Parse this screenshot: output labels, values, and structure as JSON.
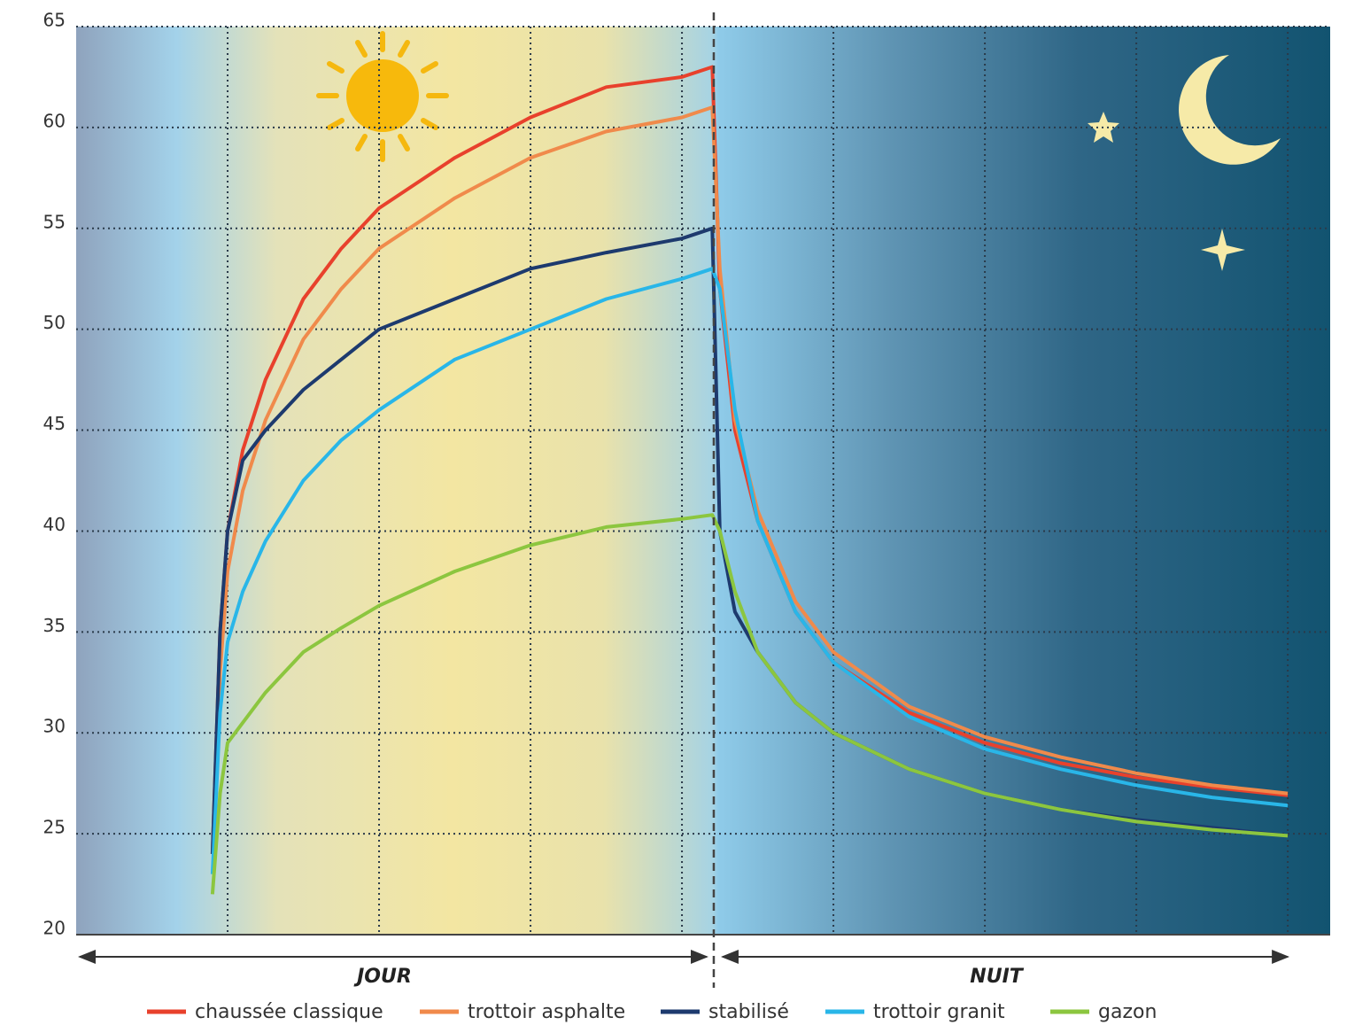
{
  "chart_data": {
    "type": "line",
    "x": [
      -0.1,
      -0.05,
      0,
      0.1,
      0.25,
      0.5,
      0.75,
      1,
      1.5,
      2,
      2.5,
      3,
      3.2,
      3.25,
      3.35,
      3.5,
      3.75,
      4,
      4.5,
      5,
      5.5,
      6,
      6.5,
      7
    ],
    "xlim": [
      -1,
      7.28
    ],
    "xticks": [
      0,
      1,
      2,
      3,
      4,
      5,
      6,
      7
    ],
    "ylim": [
      20,
      65
    ],
    "yticks": [
      20,
      25,
      30,
      35,
      40,
      45,
      50,
      55,
      60,
      65
    ],
    "grid": true,
    "divider_x": 3.21,
    "periods": [
      "JOUR",
      "NUIT"
    ],
    "series": [
      {
        "name": "chaussée classique",
        "color": "#e8412c",
        "values": [
          24,
          35,
          40,
          44,
          47.5,
          51.5,
          54,
          56,
          58.5,
          60.5,
          62,
          62.5,
          63,
          52,
          45,
          40.5,
          36,
          33.5,
          31,
          29.5,
          28.5,
          27.8,
          27.3,
          26.9
        ]
      },
      {
        "name": "trottoir asphalte",
        "color": "#f08a4b",
        "values": [
          24,
          33,
          38,
          42,
          45.5,
          49.5,
          52,
          54,
          56.5,
          58.5,
          59.8,
          60.5,
          61,
          53,
          45.5,
          41,
          36.5,
          34,
          31.3,
          29.8,
          28.8,
          28,
          27.4,
          27
        ]
      },
      {
        "name": "stabilisé",
        "color": "#1d3a6e",
        "values": [
          24,
          35,
          40,
          43.5,
          45,
          47,
          48.5,
          50,
          51.5,
          53,
          53.8,
          54.5,
          55,
          40,
          36,
          34,
          31.5,
          30,
          28.2,
          27,
          26.2,
          25.7,
          25.3,
          24.9
        ]
      },
      {
        "name": "trottoir granit",
        "color": "#29b6e8",
        "values": [
          23,
          31,
          34.5,
          37,
          39.5,
          42.5,
          44.5,
          46,
          48.5,
          50,
          51.5,
          52.5,
          53,
          52,
          46,
          40.5,
          36,
          33.5,
          30.8,
          29.2,
          28.2,
          27.4,
          26.8,
          26.4
        ]
      },
      {
        "name": "gazon",
        "color": "#8cc63f",
        "values": [
          22,
          27,
          29.5,
          30.5,
          32,
          34,
          35.2,
          36.3,
          38,
          39.3,
          40.2,
          40.6,
          40.8,
          40,
          37,
          34,
          31.5,
          30,
          28.2,
          27,
          26.2,
          25.6,
          25.2,
          24.9
        ]
      }
    ]
  }
}
